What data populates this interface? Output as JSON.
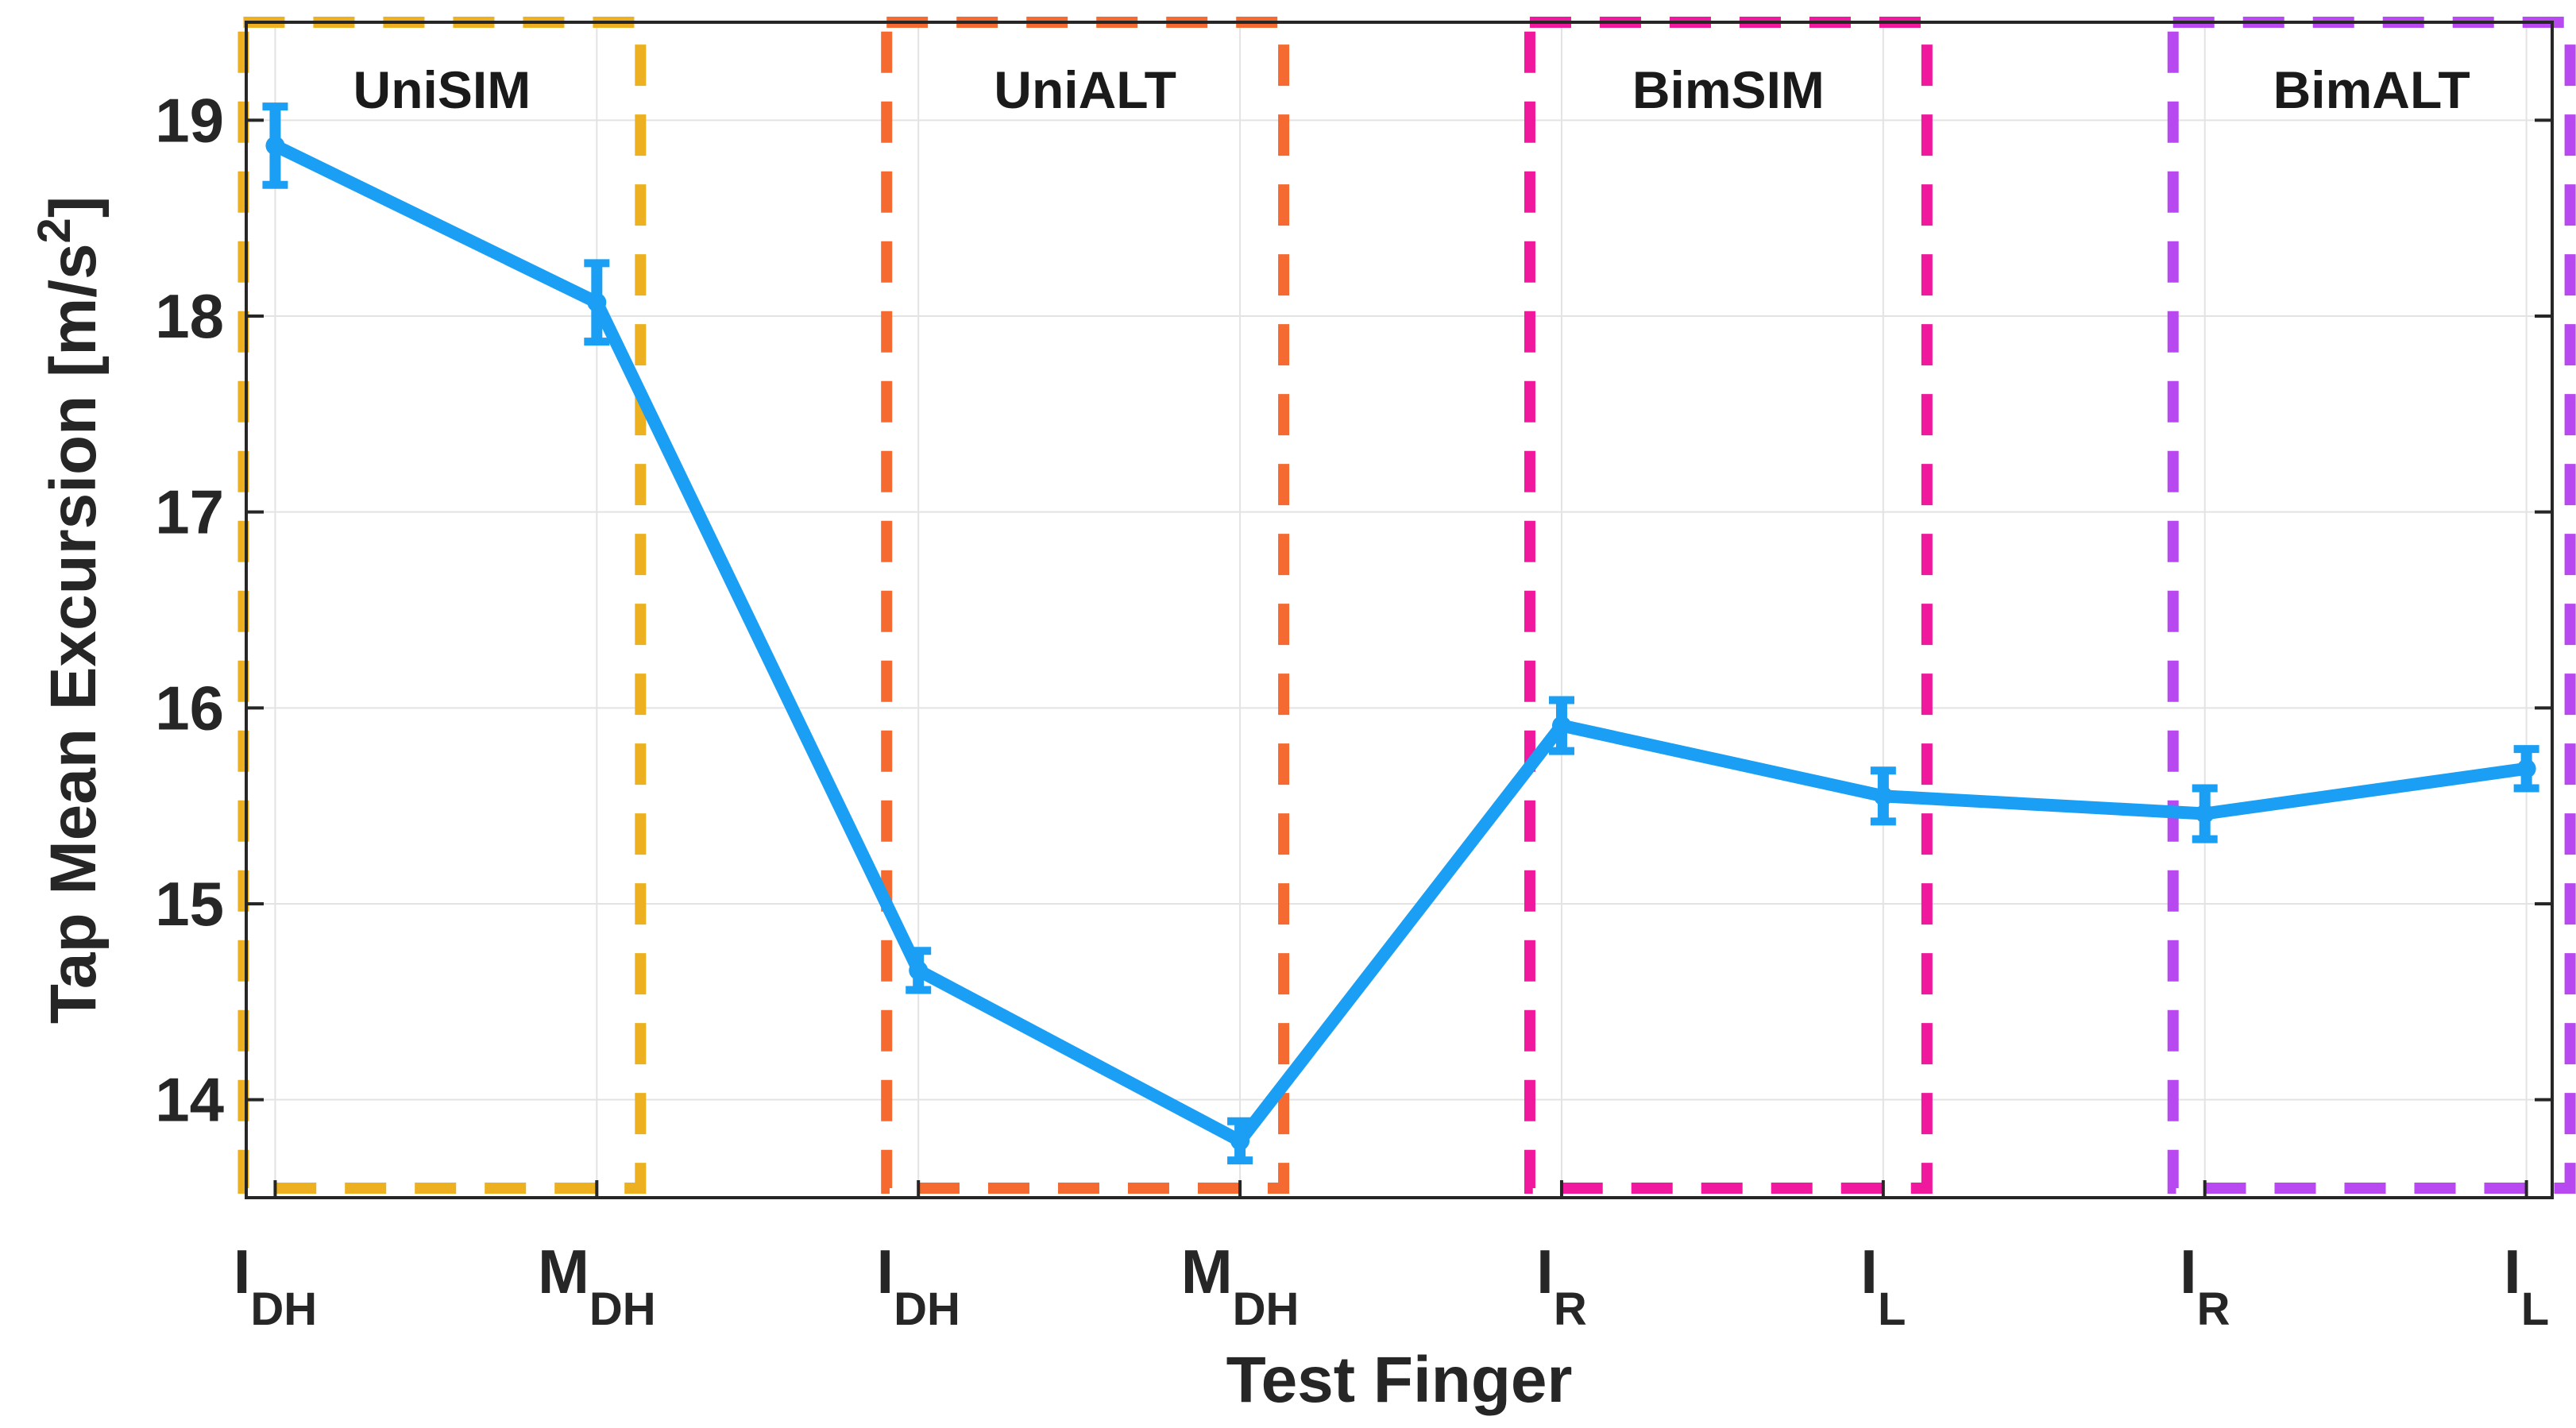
{
  "chart_data": {
    "type": "line",
    "xlabel": "Test Finger",
    "ylabel": "Tap Mean Excursion [m/s",
    "ylabel_sup": "2",
    "ylabel_close": "]",
    "ylim": [
      13.5,
      19.5
    ],
    "yticks": [
      14,
      15,
      16,
      17,
      18,
      19
    ],
    "grid": true,
    "categories": [
      {
        "base": "I",
        "sub": "DH"
      },
      {
        "base": "M",
        "sub": "DH"
      },
      {
        "base": "I",
        "sub": "DH"
      },
      {
        "base": "M",
        "sub": "DH"
      },
      {
        "base": "I",
        "sub": "R"
      },
      {
        "base": "I",
        "sub": "L"
      },
      {
        "base": "I",
        "sub": "R"
      },
      {
        "base": "I",
        "sub": "L"
      }
    ],
    "series": [
      {
        "values": [
          18.87,
          18.07,
          14.66,
          13.79,
          15.91,
          15.55,
          15.46,
          15.69
        ],
        "error": [
          0.2,
          0.2,
          0.1,
          0.1,
          0.13,
          0.13,
          0.13,
          0.1
        ],
        "color": "#1a9ff5"
      }
    ],
    "groups": [
      {
        "label": "UniSIM",
        "start": 0,
        "end": 1,
        "color": "#ecb020"
      },
      {
        "label": "UniALT",
        "start": 2,
        "end": 3,
        "color": "#f56a30"
      },
      {
        "label": "BimSIM",
        "start": 4,
        "end": 5,
        "color": "#f0189c"
      },
      {
        "label": "BimALT",
        "start": 6,
        "end": 7,
        "color": "#b848f0"
      }
    ]
  }
}
